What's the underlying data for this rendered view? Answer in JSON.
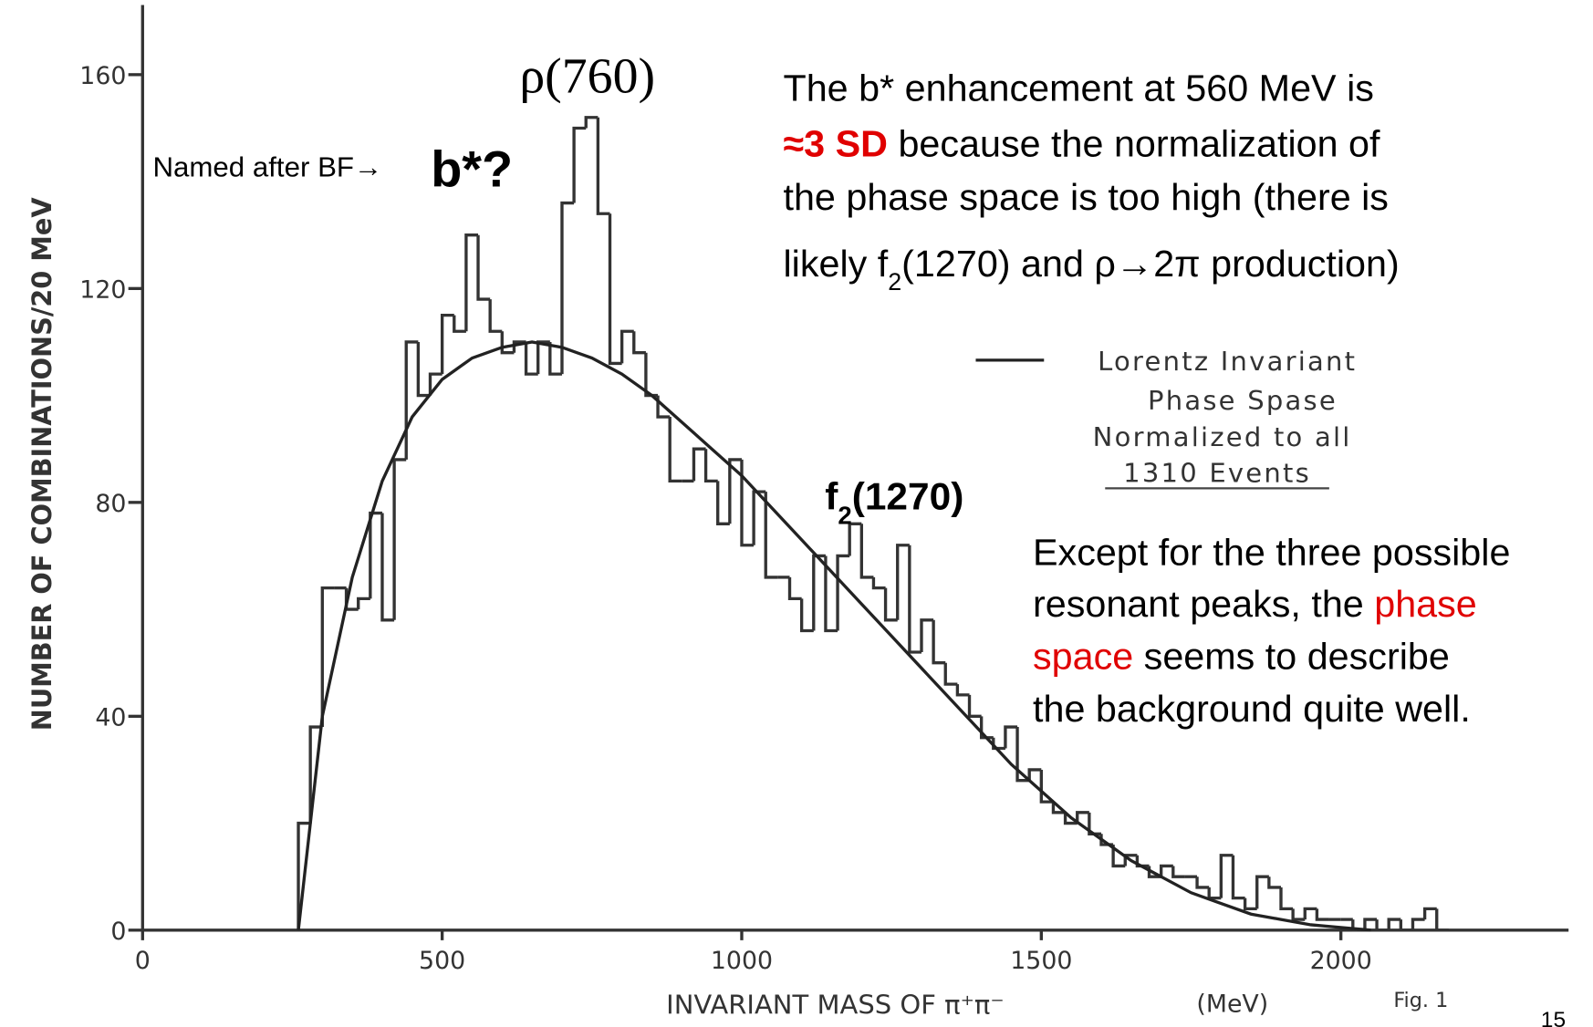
{
  "chart_data": {
    "type": "histogram",
    "y_label": "NUMBER OF COMBINATIONS/20 MeV",
    "x_label": "INVARIANT MASS OF π⁺π⁻",
    "x_unit": "(MeV)",
    "figure_label": "Fig. 1",
    "page_number": "15",
    "color": "#333333",
    "xlim": [
      0,
      2380
    ],
    "ylim": [
      0,
      170
    ],
    "xticks": [
      0,
      500,
      1000,
      1500,
      2000
    ],
    "yticks": [
      0,
      40,
      80,
      120,
      160
    ],
    "bins": [
      260,
      280,
      300,
      320,
      340,
      360,
      380,
      400,
      420,
      440,
      460,
      480,
      500,
      520,
      540,
      560,
      580,
      600,
      620,
      640,
      660,
      680,
      700,
      720,
      740,
      760,
      780,
      800,
      820,
      840,
      860,
      880,
      900,
      920,
      940,
      960,
      980,
      1000,
      1020,
      1040,
      1060,
      1080,
      1100,
      1120,
      1140,
      1160,
      1180,
      1200,
      1220,
      1240,
      1260,
      1280,
      1300,
      1320,
      1340,
      1360,
      1380,
      1400,
      1420,
      1440,
      1460,
      1480,
      1500,
      1520,
      1540,
      1560,
      1580,
      1600,
      1620,
      1640,
      1660,
      1680,
      1700,
      1720,
      1740,
      1760,
      1780,
      1800,
      1820,
      1840,
      1860,
      1880,
      1900,
      1920,
      1940,
      1960,
      1980,
      2000,
      2020,
      2040,
      2060,
      2080,
      2100,
      2120,
      2140,
      2160,
      2180
    ],
    "values": [
      20,
      38,
      64,
      64,
      60,
      62,
      78,
      58,
      88,
      110,
      100,
      104,
      115,
      112,
      130,
      118,
      112,
      108,
      110,
      104,
      110,
      104,
      136,
      150,
      152,
      134,
      106,
      112,
      108,
      100,
      96,
      84,
      84,
      90,
      84,
      76,
      88,
      72,
      82,
      66,
      66,
      62,
      56,
      70,
      56,
      70,
      76,
      66,
      64,
      58,
      72,
      52,
      58,
      50,
      46,
      44,
      40,
      36,
      34,
      38,
      28,
      30,
      24,
      22,
      20,
      22,
      18,
      16,
      12,
      14,
      12,
      10,
      12,
      10,
      10,
      8,
      6,
      14,
      6,
      4,
      10,
      8,
      4,
      2,
      4,
      2,
      2,
      2,
      0,
      2,
      0,
      2,
      0,
      2,
      4,
      0
    ],
    "curve": {
      "name": [
        "Lorentz Invariant",
        "Phase Spase",
        "Normalized to all",
        "1310 Events"
      ],
      "color": "#222222",
      "x": [
        260,
        280,
        300,
        350,
        400,
        450,
        500,
        550,
        600,
        650,
        700,
        750,
        800,
        850,
        900,
        950,
        1000,
        1050,
        1100,
        1150,
        1200,
        1250,
        1300,
        1350,
        1400,
        1450,
        1500,
        1550,
        1600,
        1650,
        1700,
        1750,
        1800,
        1850,
        1900,
        1950,
        2000,
        2050
      ],
      "values": [
        0,
        20,
        40,
        66,
        84,
        96,
        103,
        107,
        109,
        110,
        109,
        107,
        104,
        100,
        95,
        90,
        85,
        79,
        73,
        67,
        61,
        55,
        49,
        43,
        37,
        31,
        26,
        21,
        17,
        13,
        10,
        7,
        5,
        3,
        2,
        1,
        0.5,
        0
      ]
    },
    "highlight_color": "#e00000",
    "annotations": {
      "rho": "ρ(760)",
      "named": "Named after BF→",
      "named_color": "#139a13",
      "bstar": "b*?",
      "f2": [
        {
          "text": "f"
        },
        {
          "text": "2",
          "sub": true
        },
        {
          "text": "(1270)"
        }
      ],
      "note1": [
        [
          {
            "text": "The b* enhancement at 560 MeV is"
          }
        ],
        [
          {
            "text": "≈3 SD",
            "highlight": true,
            "bold": true
          },
          {
            "text": " because the normalization of"
          }
        ],
        [
          {
            "text": "the phase space is too high (there is"
          }
        ],
        [
          {
            "text": "likely f"
          },
          {
            "text": "2",
            "sub": true
          },
          {
            "text": "(1270) and ρ→2π production)"
          }
        ]
      ],
      "note2": [
        [
          {
            "text": "Except for the three possible"
          }
        ],
        [
          {
            "text": "resonant peaks, the "
          },
          {
            "text": "phase",
            "highlight": true
          }
        ],
        [
          {
            "text": "space",
            "highlight": true
          },
          {
            "text": " seems to describe"
          }
        ],
        [
          {
            "text": "the background quite well."
          }
        ]
      ]
    }
  }
}
